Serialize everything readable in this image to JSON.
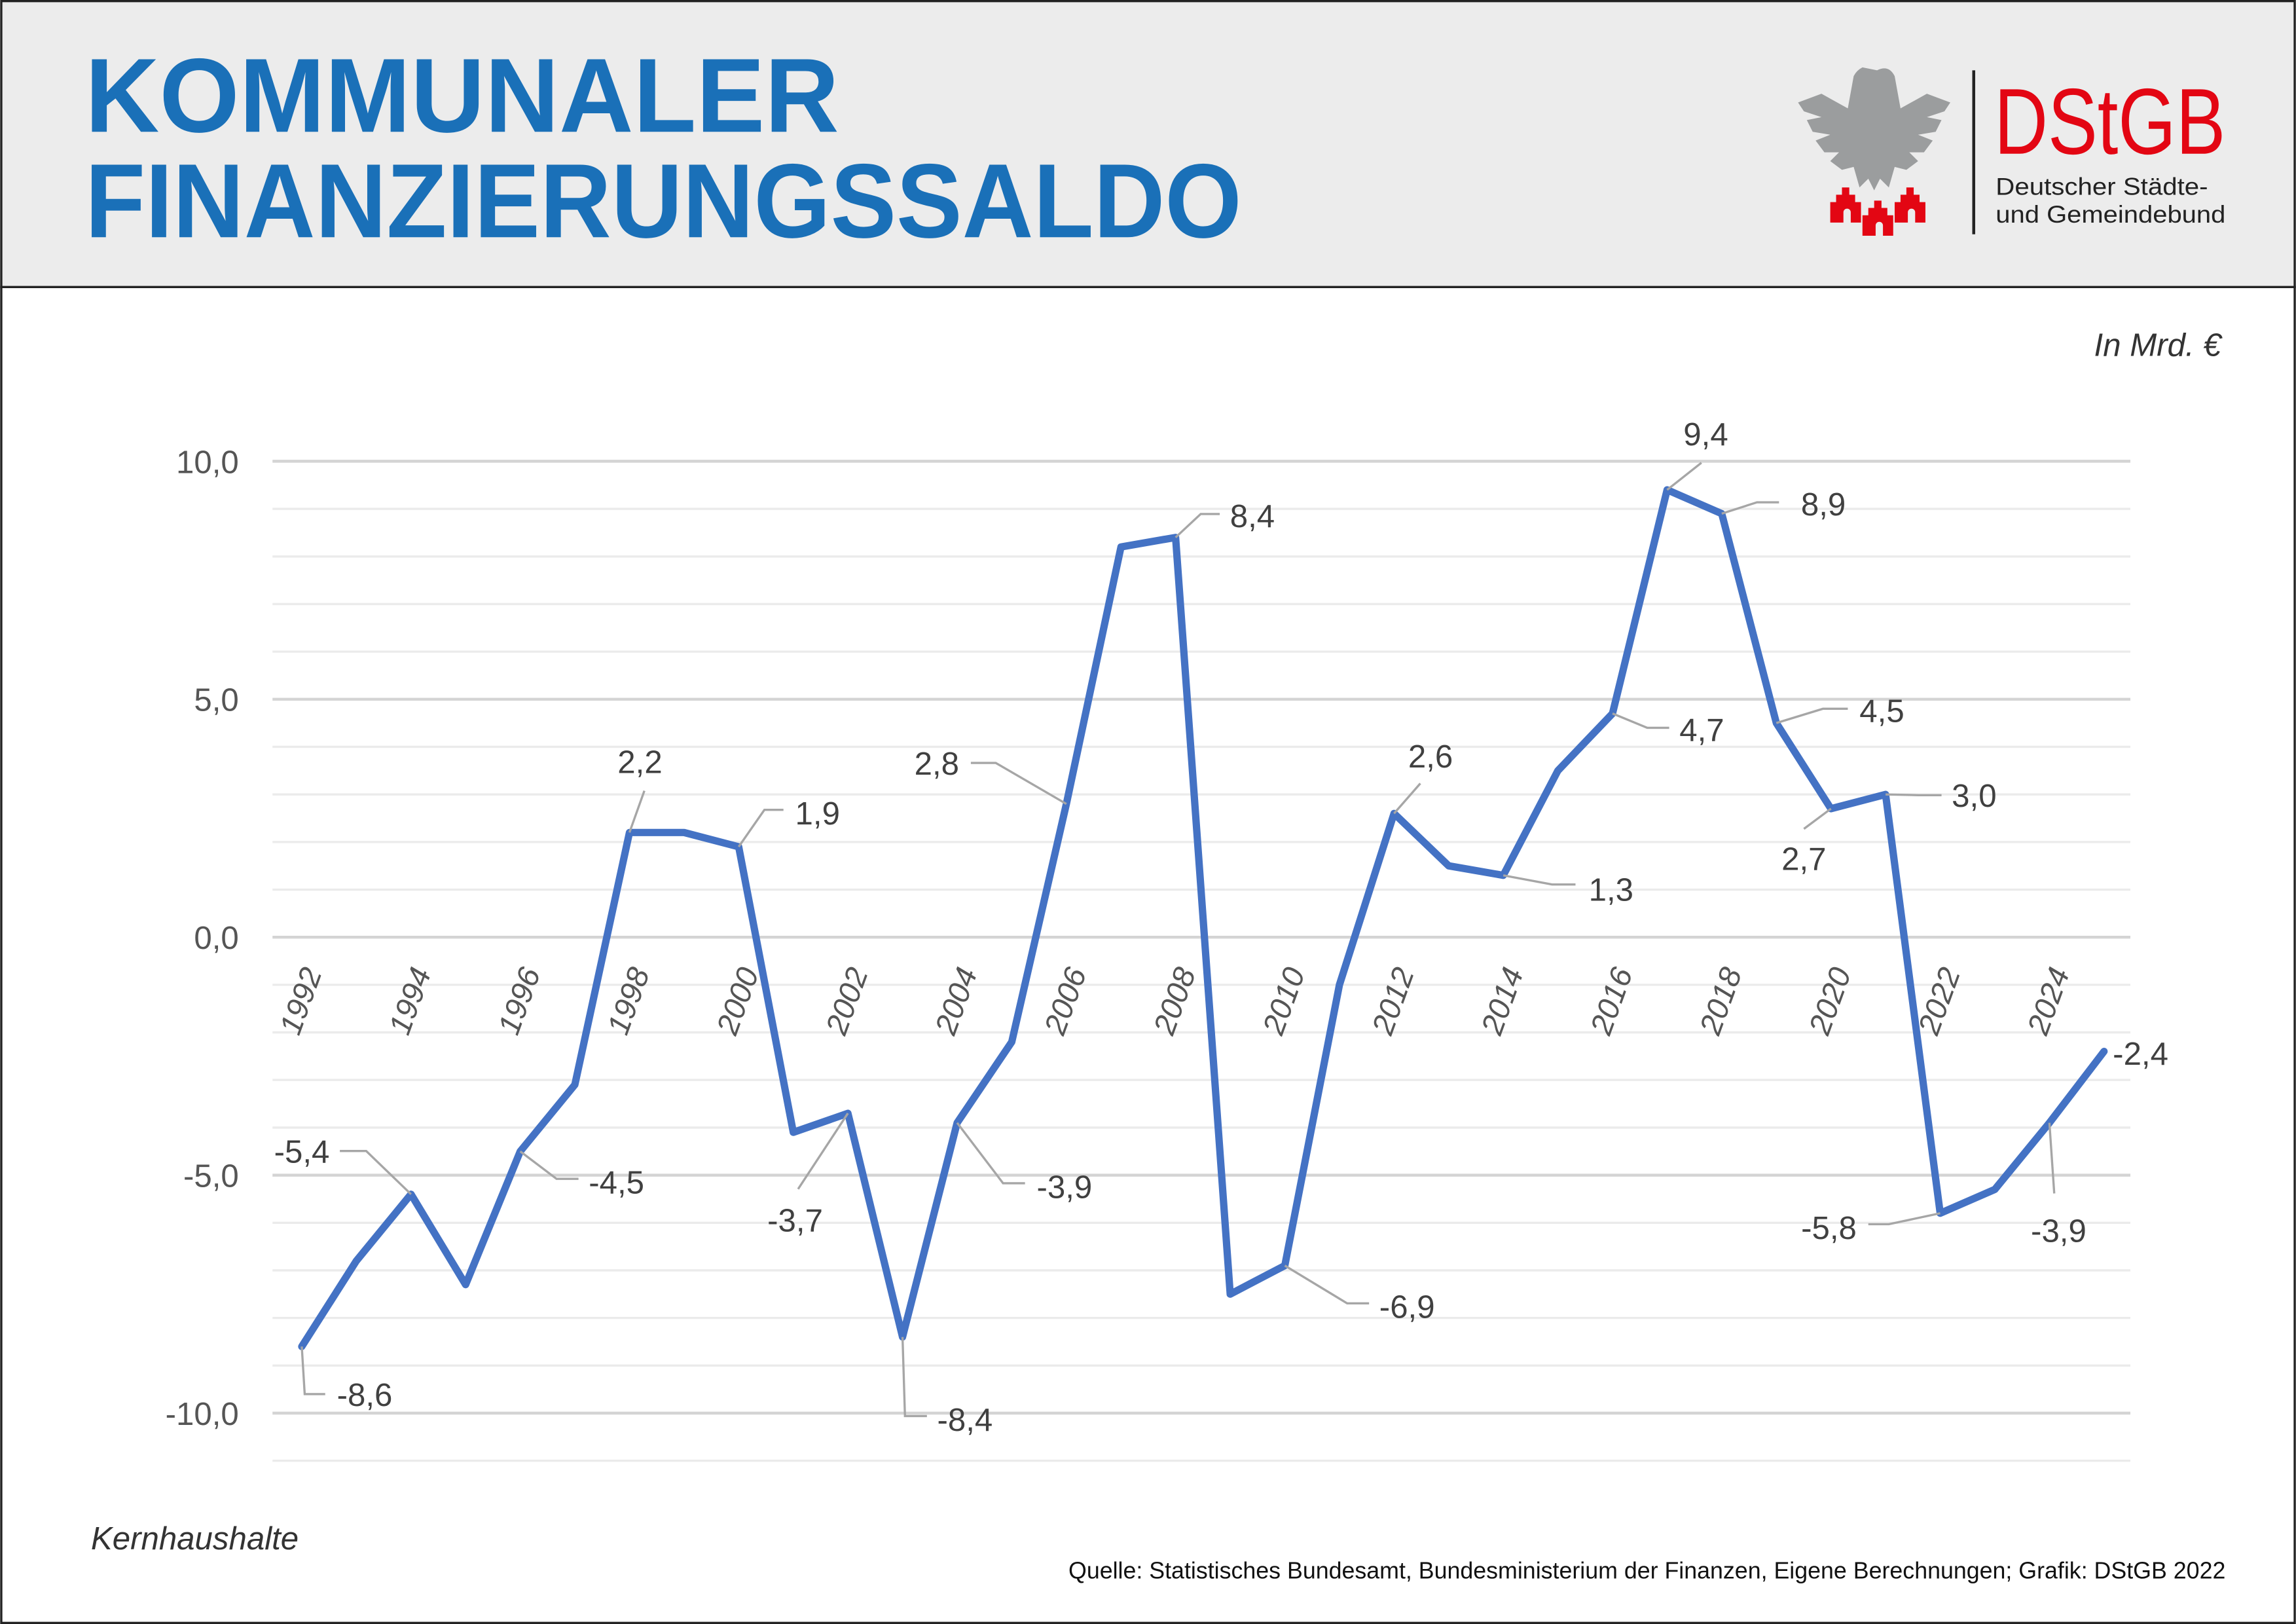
{
  "header": {
    "title_line1": "KOMMUNALER",
    "title_line2": "FINANZIERUNGSSALDO",
    "logo": {
      "name": "DStGB",
      "subtitle_line1": "Deutscher Städte-",
      "subtitle_line2": "und Gemeindebund"
    }
  },
  "colors": {
    "title": "#1a70b8",
    "line": "#4472c4",
    "logo_red": "#e30613",
    "header_bg": "#ececec",
    "eagle": "#9b9d9e"
  },
  "chart_data": {
    "type": "line",
    "unit_label": "In Mrd. €",
    "x": [
      1992,
      1993,
      1994,
      1995,
      1996,
      1997,
      1998,
      1999,
      2000,
      2001,
      2002,
      2003,
      2004,
      2005,
      2006,
      2007,
      2008,
      2009,
      2010,
      2011,
      2012,
      2013,
      2014,
      2015,
      2016,
      2017,
      2018,
      2019,
      2020,
      2021,
      2022,
      2023,
      2024,
      2025
    ],
    "values": [
      -8.6,
      -6.8,
      -5.4,
      -7.3,
      -4.5,
      -3.1,
      2.2,
      2.2,
      1.9,
      -4.1,
      -3.7,
      -8.4,
      -3.9,
      -2.2,
      2.8,
      8.2,
      8.4,
      -7.5,
      -6.9,
      -1.0,
      2.6,
      1.5,
      1.3,
      3.5,
      4.7,
      9.4,
      8.9,
      4.5,
      2.7,
      3.0,
      -5.8,
      -5.3,
      -3.9,
      -2.4
    ],
    "ylim": [
      -11,
      10
    ],
    "y_ticks": [
      "10,0",
      "5,0",
      "0,0",
      "-5,0",
      "-10,0"
    ],
    "y_tick_values": [
      10,
      5,
      0,
      -5,
      -10
    ],
    "x_ticks": [
      "1992",
      "1994",
      "1996",
      "1998",
      "2000",
      "2002",
      "2004",
      "2006",
      "2008",
      "2010",
      "2012",
      "2014",
      "2016",
      "2018",
      "2020",
      "2022",
      "2024"
    ],
    "grid": true,
    "data_labels": [
      {
        "year": 1992,
        "text": "-8,6"
      },
      {
        "year": 1994,
        "text": "-5,4"
      },
      {
        "year": 1996,
        "text": "-4,5"
      },
      {
        "year": 1998,
        "text": "2,2"
      },
      {
        "year": 2000,
        "text": "1,9"
      },
      {
        "year": 2002,
        "text": "-3,7"
      },
      {
        "year": 2003,
        "text": "-8,4"
      },
      {
        "year": 2004,
        "text": "-3,9"
      },
      {
        "year": 2006,
        "text": "2,8"
      },
      {
        "year": 2008,
        "text": "8,4"
      },
      {
        "year": 2010,
        "text": "-6,9"
      },
      {
        "year": 2012,
        "text": "2,6"
      },
      {
        "year": 2014,
        "text": "1,3"
      },
      {
        "year": 2016,
        "text": "4,7"
      },
      {
        "year": 2017,
        "text": "9,4"
      },
      {
        "year": 2018,
        "text": "8,9"
      },
      {
        "year": 2019,
        "text": "4,5"
      },
      {
        "year": 2020,
        "text": "2,7"
      },
      {
        "year": 2021,
        "text": "3,0"
      },
      {
        "year": 2022,
        "text": "-5,8"
      },
      {
        "year": 2024,
        "text": "-3,9"
      },
      {
        "year": 2025,
        "text": "-2,4"
      }
    ]
  },
  "footer": {
    "note": "Kernhaushalte",
    "source": "Quelle: Statistisches Bundesamt, Bundesministerium der Finanzen, Eigene Berechnungen; Grafik: DStGB 2022"
  }
}
